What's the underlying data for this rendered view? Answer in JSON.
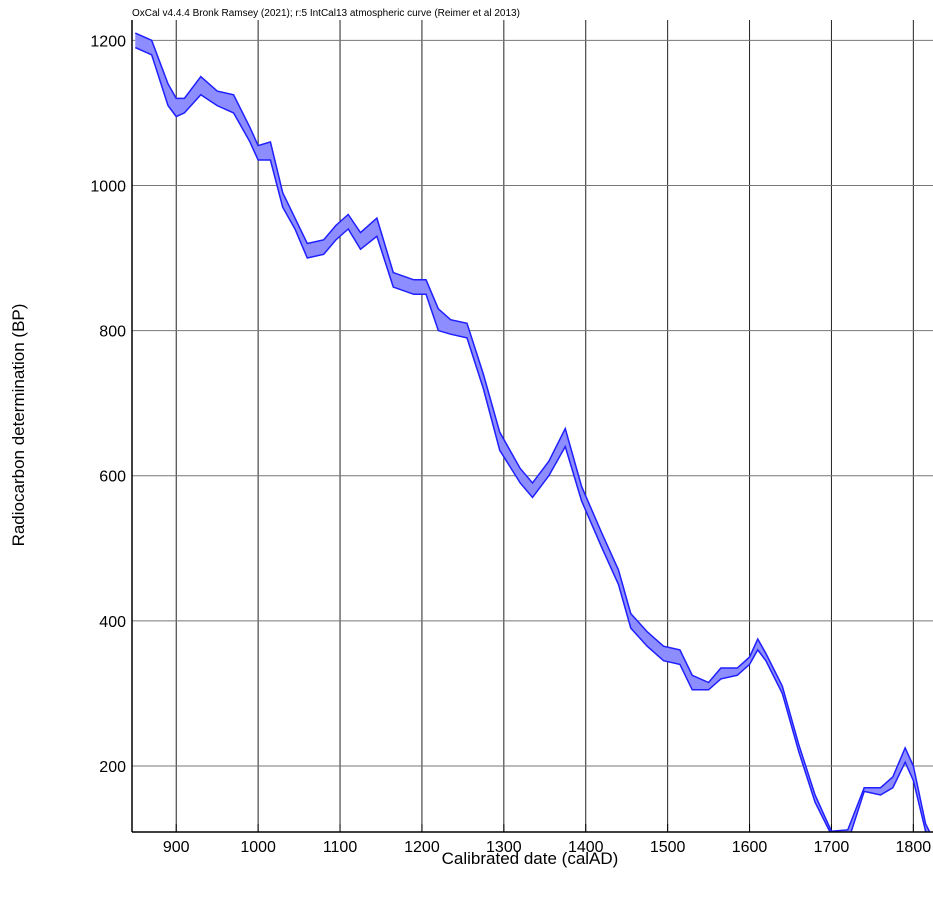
{
  "chart_data": {
    "type": "band",
    "title": "OxCal v4.4.4 Bronk Ramsey (2021); r:5 IntCal13 atmospheric curve (Reimer et al 2013)",
    "x_label": "Calibrated date (calAD)",
    "y_label": "Radiocarbon determination (BP)",
    "x": [
      850,
      870,
      890,
      900,
      910,
      930,
      950,
      970,
      990,
      1000,
      1015,
      1030,
      1045,
      1060,
      1080,
      1095,
      1110,
      1125,
      1145,
      1165,
      1190,
      1205,
      1220,
      1235,
      1255,
      1275,
      1295,
      1320,
      1335,
      1355,
      1375,
      1395,
      1420,
      1440,
      1455,
      1475,
      1495,
      1515,
      1530,
      1550,
      1565,
      1585,
      1600,
      1610,
      1620,
      1640,
      1660,
      1680,
      1700,
      1720,
      1740,
      1760,
      1775,
      1790,
      1800,
      1815,
      1824
    ],
    "high": [
      1210,
      1200,
      1140,
      1120,
      1120,
      1150,
      1130,
      1125,
      1080,
      1055,
      1060,
      990,
      955,
      920,
      925,
      945,
      960,
      935,
      955,
      880,
      870,
      870,
      830,
      815,
      810,
      740,
      660,
      610,
      590,
      620,
      665,
      585,
      520,
      470,
      410,
      385,
      365,
      360,
      325,
      315,
      335,
      335,
      350,
      375,
      355,
      310,
      230,
      160,
      110,
      112,
      170,
      170,
      185,
      225,
      200,
      120,
      100
    ],
    "low": [
      1190,
      1180,
      1110,
      1095,
      1100,
      1125,
      1110,
      1100,
      1060,
      1035,
      1035,
      970,
      940,
      900,
      905,
      925,
      940,
      912,
      930,
      860,
      850,
      850,
      800,
      795,
      790,
      720,
      635,
      590,
      570,
      600,
      640,
      565,
      500,
      450,
      390,
      365,
      345,
      340,
      305,
      305,
      320,
      325,
      340,
      360,
      345,
      300,
      220,
      150,
      105,
      95,
      165,
      160,
      170,
      205,
      180,
      110,
      95
    ],
    "color": "#1f1fff",
    "fill": "#8d8dff",
    "xlim": [
      846,
      1824
    ],
    "ylim": [
      109,
      1228
    ],
    "xticks": [
      900,
      1000,
      1100,
      1200,
      1300,
      1400,
      1500,
      1600,
      1700,
      1800
    ],
    "yticks": [
      200,
      400,
      600,
      800,
      1000,
      1200
    ],
    "grid": true
  }
}
